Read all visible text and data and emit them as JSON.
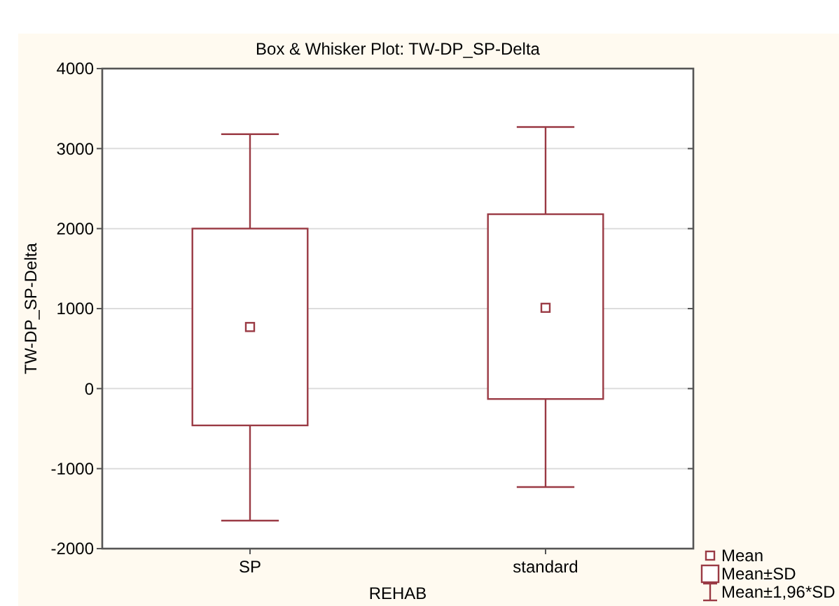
{
  "chart_data": {
    "type": "box",
    "title": "Box & Whisker Plot: TW-DP_SP-Delta",
    "xlabel": "REHAB",
    "ylabel": "TW-DP_SP-Delta",
    "categories": [
      "SP",
      "standard"
    ],
    "series": [
      {
        "color": "#9a3a44",
        "marker": "square",
        "boxes": [
          {
            "low": -1650,
            "q1": -460,
            "q3": 2000,
            "high": 3180,
            "mean": 770
          },
          {
            "low": -1230,
            "q1": -130,
            "q3": 2180,
            "high": 3270,
            "mean": 1010
          }
        ]
      }
    ],
    "annotations": [
      "Mean",
      "Mean±SD",
      "Mean±1,96*SD"
    ],
    "ylim": [
      -2000,
      4000
    ],
    "yticks": [
      -2000,
      -1000,
      0,
      1000,
      2000,
      3000,
      4000
    ],
    "grid": "y"
  }
}
